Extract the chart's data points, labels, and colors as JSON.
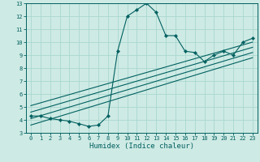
{
  "xlabel": "Humidex (Indice chaleur)",
  "bg_color": "#ceeae4",
  "line_color": "#006060",
  "grid_color": "#a8d8d0",
  "xlim": [
    -0.5,
    23.5
  ],
  "ylim": [
    3,
    13
  ],
  "xticks": [
    0,
    1,
    2,
    3,
    4,
    5,
    6,
    7,
    8,
    9,
    10,
    11,
    12,
    13,
    14,
    15,
    16,
    17,
    18,
    19,
    20,
    21,
    22,
    23
  ],
  "yticks": [
    3,
    4,
    5,
    6,
    7,
    8,
    9,
    10,
    11,
    12,
    13
  ],
  "main_x": [
    0,
    1,
    2,
    3,
    4,
    5,
    6,
    7,
    8,
    9,
    10,
    11,
    12,
    13,
    14,
    15,
    16,
    17,
    18,
    19,
    20,
    21,
    22,
    23
  ],
  "main_y": [
    4.3,
    4.3,
    4.1,
    4.0,
    3.9,
    3.7,
    3.5,
    3.6,
    4.3,
    9.3,
    12.0,
    12.5,
    13.0,
    12.3,
    10.5,
    10.5,
    9.3,
    9.2,
    8.5,
    9.0,
    9.3,
    9.0,
    10.0,
    10.3
  ],
  "reg_lines": [
    {
      "x": [
        0,
        23
      ],
      "y": [
        3.6,
        8.8
      ]
    },
    {
      "x": [
        0,
        23
      ],
      "y": [
        4.1,
        9.2
      ]
    },
    {
      "x": [
        0,
        23
      ],
      "y": [
        4.6,
        9.6
      ]
    },
    {
      "x": [
        0,
        23
      ],
      "y": [
        5.1,
        10.0
      ]
    }
  ]
}
